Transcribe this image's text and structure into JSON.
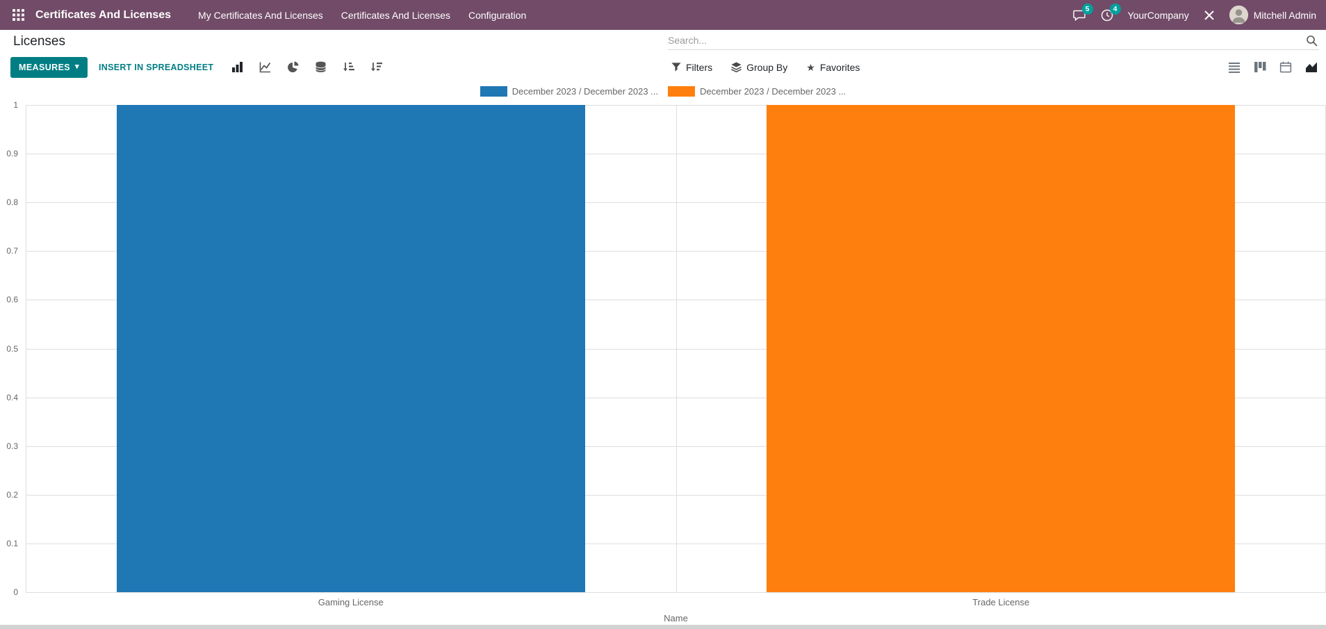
{
  "nav": {
    "app_name": "Certificates And Licenses",
    "menu_items": [
      "My Certificates And Licenses",
      "Certificates And Licenses",
      "Configuration"
    ],
    "messages_badge": "5",
    "activities_badge": "4",
    "company": "YourCompany",
    "user": "Mitchell Admin"
  },
  "control_panel": {
    "title": "Licenses",
    "search_placeholder": "Search...",
    "measures_label": "MEASURES",
    "insert_label": "INSERT IN SPREADSHEET",
    "filters_label": "Filters",
    "group_by_label": "Group By",
    "favorites_label": "Favorites"
  },
  "icons": {
    "caret_down": "▾",
    "favorites_star": "★"
  },
  "chart_data": {
    "type": "bar",
    "title": "",
    "categories": [
      "Gaming License",
      "Trade License"
    ],
    "series": [
      {
        "name": "December 2023 / December 2023 ...",
        "color": "#1f77b4",
        "values": [
          1,
          0
        ]
      },
      {
        "name": "December 2023 / December 2023 ...",
        "color": "#ff7f0e",
        "values": [
          0,
          1
        ]
      }
    ],
    "xlabel": "Name",
    "ylabel": "",
    "ylim": [
      0,
      1
    ],
    "yticks": [
      0,
      0.1,
      0.2,
      0.3,
      0.4,
      0.5,
      0.6,
      0.7,
      0.8,
      0.9,
      1
    ],
    "legend_position": "top",
    "grid": true
  },
  "colors": {
    "navbar": "#714B67",
    "primary": "#017E84",
    "badge": "#00A09D",
    "bar_blue": "#1f77b4",
    "bar_orange": "#ff7f0e"
  }
}
